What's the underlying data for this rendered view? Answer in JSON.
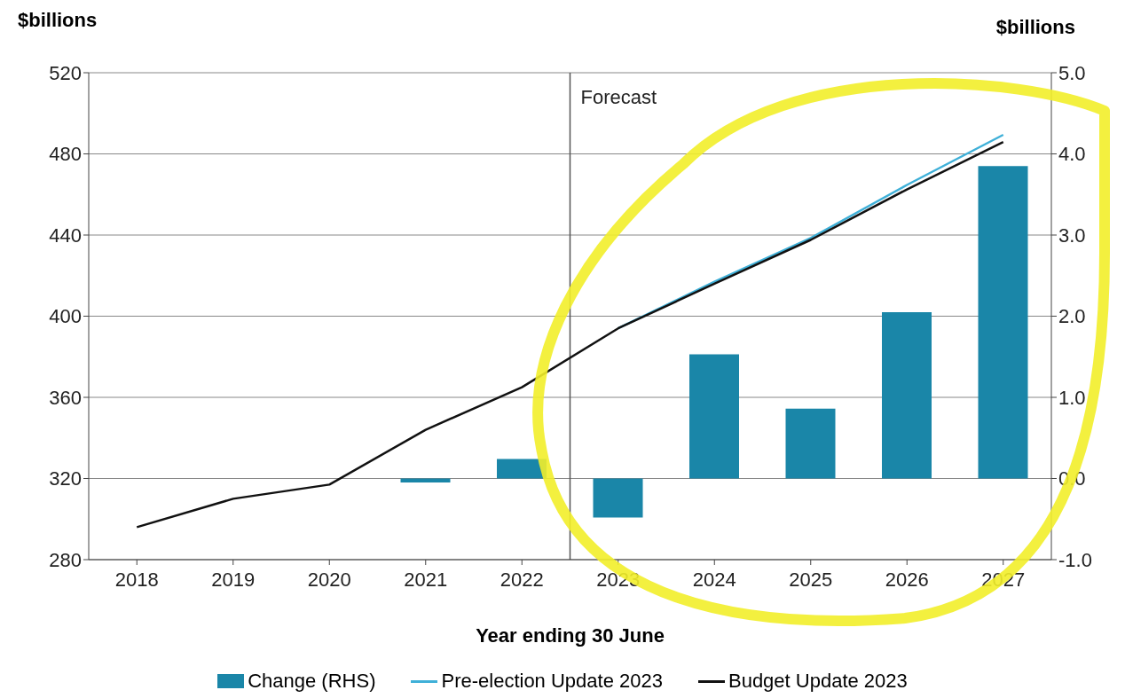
{
  "chart_data": {
    "type": "line",
    "xlabel": "Year ending 30 June",
    "ylabel": "$billions",
    "y2label": "$billions",
    "x": [
      2018,
      2019,
      2020,
      2021,
      2022,
      2023,
      2024,
      2025,
      2026,
      2027
    ],
    "xlim": [
      2017.5,
      2027.5
    ],
    "xticks": [
      2018,
      2019,
      2020,
      2021,
      2022,
      2023,
      2024,
      2025,
      2026,
      2027
    ],
    "ylim": [
      280,
      520
    ],
    "yticks": [
      280,
      320,
      360,
      400,
      440,
      480,
      520
    ],
    "y2lim": [
      -1,
      5
    ],
    "y2ticks": [
      {
        "value": -1,
        "label": "-1.0"
      },
      {
        "value": 0,
        "label": "0.0"
      },
      {
        "value": 1,
        "label": "1.0"
      },
      {
        "value": 2,
        "label": "2.0"
      },
      {
        "value": 3,
        "label": "3.0"
      },
      {
        "value": 4,
        "label": "4.0"
      },
      {
        "value": 5,
        "label": "5.0"
      }
    ],
    "grid": "y",
    "legend": "bottom",
    "ref_lines": [
      {
        "axis": "x",
        "value": 2022.5,
        "label": "Forecast",
        "color": "#555555"
      }
    ],
    "series": [
      {
        "name": "Change (RHS)",
        "type": "bar",
        "axis": "y2",
        "color": "#1a86a8",
        "values": [
          0,
          0,
          0,
          -0.05,
          0.24,
          -0.48,
          1.53,
          0.86,
          2.05,
          3.85
        ]
      },
      {
        "name": "Pre-election Update 2023",
        "color": "#3fb0d8",
        "values": [
          null,
          null,
          null,
          null,
          null,
          394,
          417,
          438.5,
          464.7,
          489.4
        ]
      },
      {
        "name": "Budget Update 2023",
        "color": "#111111",
        "values": [
          296,
          310,
          317,
          344,
          365,
          394,
          416,
          437.6,
          462.5,
          485.9
        ]
      }
    ]
  }
}
